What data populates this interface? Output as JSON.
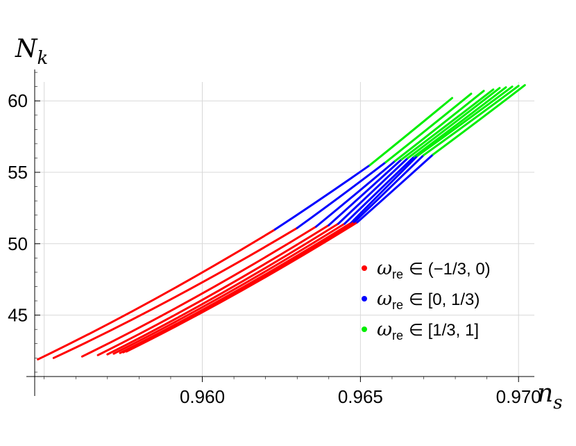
{
  "chart_data": {
    "type": "scatter",
    "title": "",
    "xlabel": "n",
    "xlabel_sub": "s",
    "ylabel": "N",
    "ylabel_sub": "k",
    "xlim": [
      0.9547,
      0.9705
    ],
    "ylim": [
      40.7,
      62.2
    ],
    "x_ticks": [
      0.96,
      0.965,
      0.97
    ],
    "x_tick_labels": [
      "0.960",
      "0.965",
      "0.970"
    ],
    "y_ticks": [
      45,
      50,
      55,
      60
    ],
    "y_tick_labels": [
      "45",
      "50",
      "55",
      "60"
    ],
    "grid": true,
    "legend_position": "lower-right",
    "series": [
      {
        "symbol": "ω",
        "sub": "re",
        "range": "∈ (−1/3, 0)",
        "color": "#ff0000"
      },
      {
        "symbol": "ω",
        "sub": "re",
        "range": "∈ [0, 1/3)",
        "color": "#0000ff"
      },
      {
        "symbol": "ω",
        "sub": "re",
        "range": "∈ [1/3, 1]",
        "color": "#00ee00"
      }
    ],
    "curves": [
      {
        "start": [
          0.9548,
          41.9
        ],
        "red_end": [
          0.9623,
          51.0
        ],
        "blue_end": [
          0.9653,
          55.5
        ],
        "end": [
          0.9679,
          60.2
        ]
      },
      {
        "start": [
          0.9553,
          42.0
        ],
        "red_end": [
          0.963,
          51.1
        ],
        "blue_end": [
          0.9658,
          55.7
        ],
        "end": [
          0.9685,
          60.5
        ]
      },
      {
        "start": [
          0.9562,
          42.1
        ],
        "red_end": [
          0.9636,
          51.2
        ],
        "blue_end": [
          0.9661,
          55.8
        ],
        "end": [
          0.9689,
          60.7
        ]
      },
      {
        "start": [
          0.9567,
          42.2
        ],
        "red_end": [
          0.964,
          51.3
        ],
        "blue_end": [
          0.9663,
          55.9
        ],
        "end": [
          0.9692,
          60.8
        ]
      },
      {
        "start": [
          0.957,
          42.25
        ],
        "red_end": [
          0.9643,
          51.4
        ],
        "blue_end": [
          0.9665,
          56.0
        ],
        "end": [
          0.9694,
          60.9
        ]
      },
      {
        "start": [
          0.9572,
          42.3
        ],
        "red_end": [
          0.9645,
          51.4
        ],
        "blue_end": [
          0.9667,
          56.1
        ],
        "end": [
          0.9696,
          60.95
        ]
      },
      {
        "start": [
          0.9574,
          42.35
        ],
        "red_end": [
          0.9647,
          51.45
        ],
        "blue_end": [
          0.9668,
          56.15
        ],
        "end": [
          0.9698,
          61.0
        ]
      },
      {
        "start": [
          0.9575,
          42.4
        ],
        "red_end": [
          0.9648,
          51.5
        ],
        "blue_end": [
          0.967,
          56.2
        ],
        "end": [
          0.97,
          61.05
        ]
      },
      {
        "start": [
          0.9576,
          42.45
        ],
        "red_end": [
          0.9649,
          51.5
        ],
        "blue_end": [
          0.9673,
          56.25
        ],
        "end": [
          0.9702,
          61.1
        ]
      }
    ]
  }
}
